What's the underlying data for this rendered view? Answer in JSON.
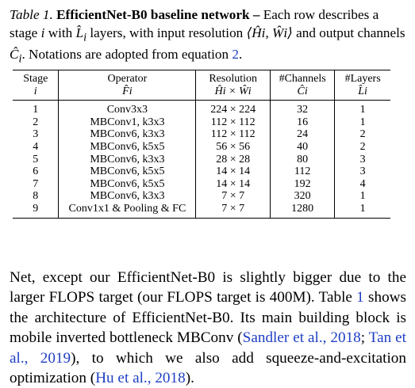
{
  "caption": {
    "label": "Table 1.",
    "title": "EfficientNet-B0 baseline network –",
    "p1": " Each row describes a stage ",
    "p1_math": "i",
    "p2": " with ",
    "p2_math": "L̂",
    "p2_sub": "i",
    "p3": " layers, with input resolution ",
    "p3_math": "⟨Ĥi, Ŵi⟩",
    "p4": " and output channels ",
    "p4_math": "Ĉ",
    "p4_sub": "i",
    "p5": ". Notations are adopted from equation ",
    "eq_ref": "2",
    "p6": "."
  },
  "table": {
    "headers": {
      "stage": "Stage",
      "stage_sub": "i",
      "operator": "Operator",
      "operator_sub": "F̂i",
      "resolution": "Resolution",
      "resolution_sub": "Ĥi × Ŵi",
      "channels": "#Channels",
      "channels_sub": "Ĉi",
      "layers": "#Layers",
      "layers_sub": "L̂i"
    },
    "rows": [
      {
        "stage": "1",
        "operator": "Conv3x3",
        "resolution": "224 × 224",
        "channels": "32",
        "layers": "1"
      },
      {
        "stage": "2",
        "operator": "MBConv1, k3x3",
        "resolution": "112 × 112",
        "channels": "16",
        "layers": "1"
      },
      {
        "stage": "3",
        "operator": "MBConv6, k3x3",
        "resolution": "112 × 112",
        "channels": "24",
        "layers": "2"
      },
      {
        "stage": "4",
        "operator": "MBConv6, k5x5",
        "resolution": "56 × 56",
        "channels": "40",
        "layers": "2"
      },
      {
        "stage": "5",
        "operator": "MBConv6, k3x3",
        "resolution": "28 × 28",
        "channels": "80",
        "layers": "3"
      },
      {
        "stage": "6",
        "operator": "MBConv6, k5x5",
        "resolution": "14 × 14",
        "channels": "112",
        "layers": "3"
      },
      {
        "stage": "7",
        "operator": "MBConv6, k5x5",
        "resolution": "14 × 14",
        "channels": "192",
        "layers": "4"
      },
      {
        "stage": "8",
        "operator": "MBConv6, k3x3",
        "resolution": "7 × 7",
        "channels": "320",
        "layers": "1"
      },
      {
        "stage": "9",
        "operator": "Conv1x1 & Pooling & FC",
        "resolution": "7 × 7",
        "channels": "1280",
        "layers": "1"
      }
    ]
  },
  "body": {
    "t1": "Net, except our EfficientNet-B0 is slightly bigger due to the larger FLOPS target (our FLOPS target is 400M). Table ",
    "ref_table": "1",
    "t2": " shows the architecture of EfficientNet-B0. Its main building block is mobile inverted bottleneck MBConv (",
    "cite1": "Sandler et al., 2018",
    "sep": "; ",
    "cite2": "Tan et al., 2019",
    "t3": "), to which we also add squeeze-and-excitation optimization (",
    "cite3": "Hu et al., 2018",
    "t4": ")."
  },
  "colors": {
    "text": "#000000",
    "link": "#1f3fc4",
    "background": "#ffffff"
  }
}
